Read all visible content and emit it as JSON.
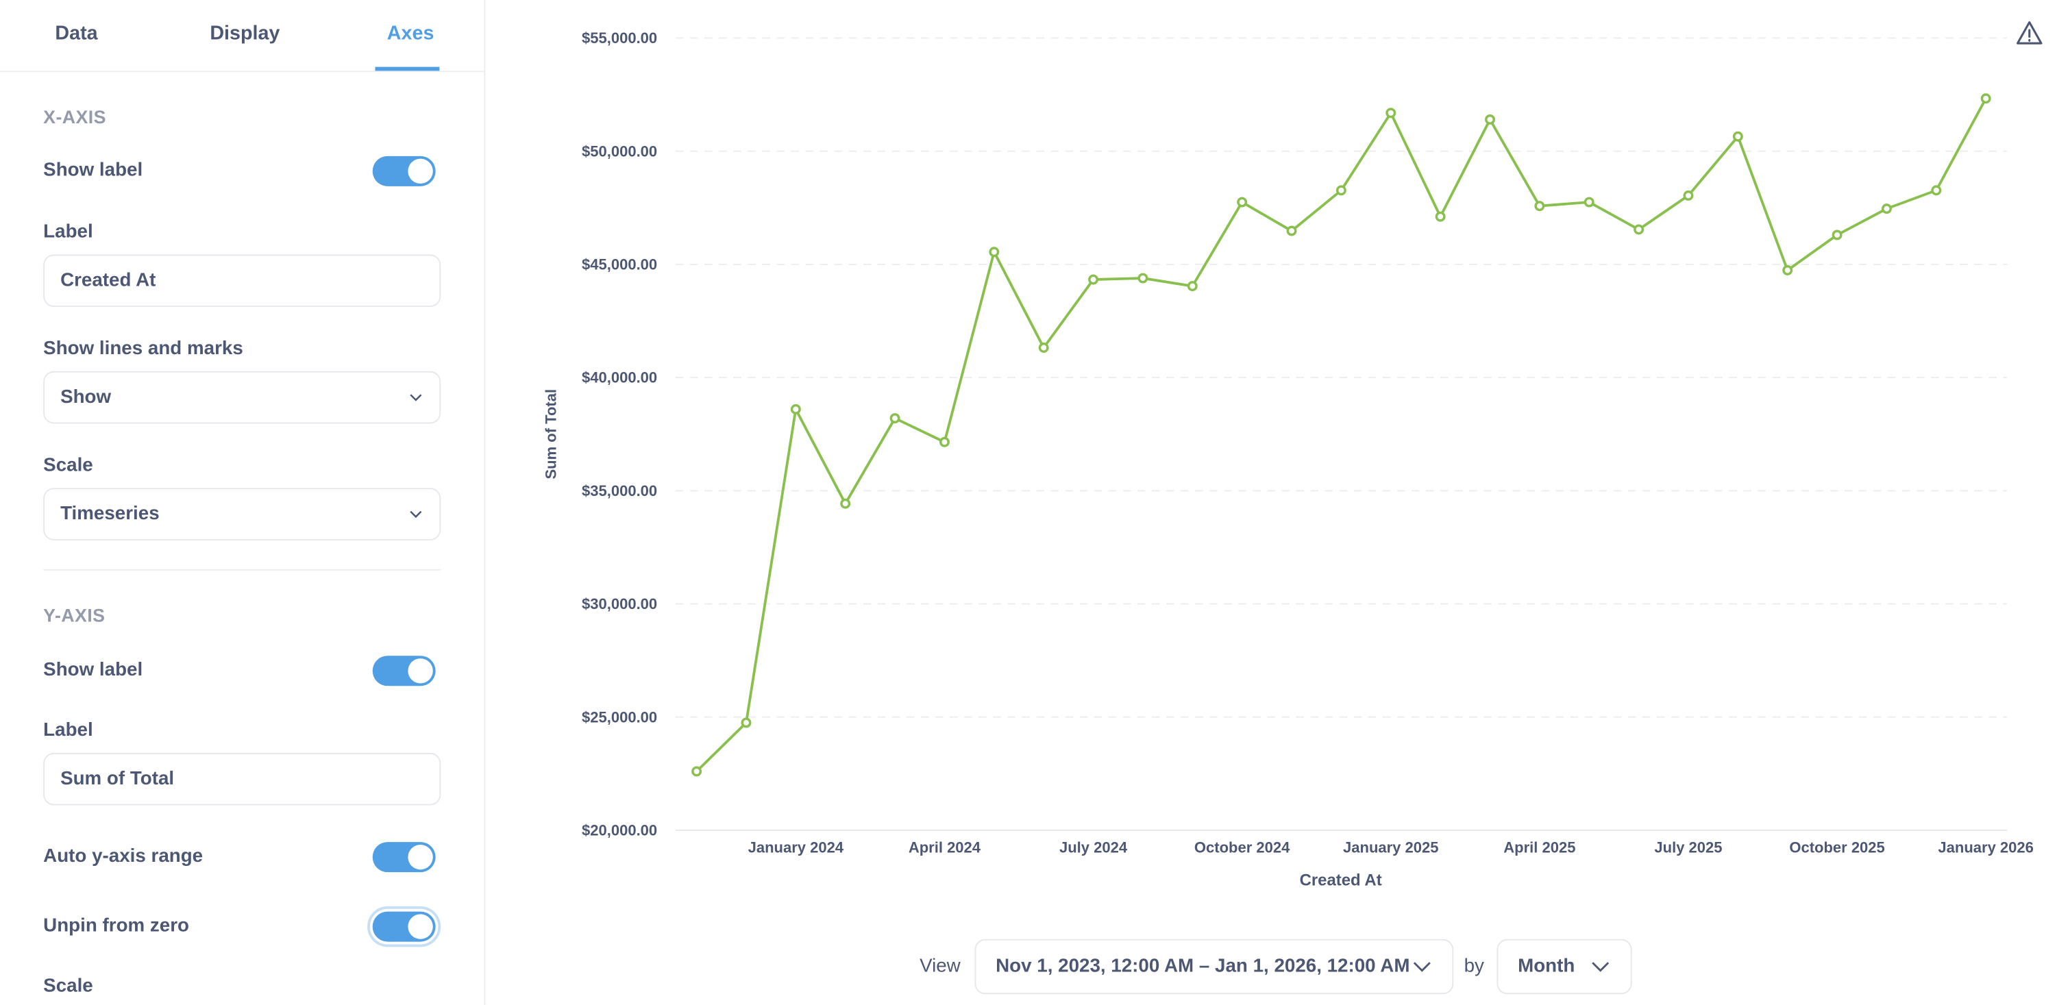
{
  "sidebar": {
    "tabs": [
      {
        "label": "Data"
      },
      {
        "label": "Display"
      },
      {
        "label": "Axes"
      }
    ],
    "active_tab": "Axes",
    "x_axis": {
      "heading": "X-AXIS",
      "show_label": "Show label",
      "show_label_on": true,
      "label_title": "Label",
      "label_value": "Created At",
      "lines_title": "Show lines and marks",
      "lines_value": "Show",
      "scale_title": "Scale",
      "scale_value": "Timeseries"
    },
    "y_axis": {
      "heading": "Y-AXIS",
      "show_label": "Show label",
      "show_label_on": true,
      "label_title": "Label",
      "label_value": "Sum of Total",
      "auto_range": "Auto y-axis range",
      "auto_range_on": true,
      "unpin": "Unpin from zero",
      "unpin_on": true,
      "scale_title": "Scale"
    }
  },
  "footer": {
    "view": "View",
    "range": "Nov 1, 2023, 12:00 AM – Jan 1, 2026, 12:00 AM",
    "by": "by",
    "unit": "Month"
  },
  "icons": {
    "warning": "warning-triangle-icon",
    "chevron": "chevron-down-icon"
  },
  "colors": {
    "accent": "#509ee3",
    "series": "#88bf4d"
  },
  "chart_data": {
    "type": "line",
    "xlabel": "Created At",
    "ylabel": "Sum of Total",
    "ylim": [
      20000,
      55000
    ],
    "yticks": [
      "$20,000.00",
      "$25,000.00",
      "$30,000.00",
      "$35,000.00",
      "$40,000.00",
      "$45,000.00",
      "$50,000.00",
      "$55,000.00"
    ],
    "xticks": [
      "January 2024",
      "April 2024",
      "July 2024",
      "October 2024",
      "January 2025",
      "April 2025",
      "July 2025",
      "October 2025",
      "January 2026"
    ],
    "grid": true,
    "x": [
      "2023-11",
      "2023-12",
      "2024-01",
      "2024-02",
      "2024-03",
      "2024-04",
      "2024-05",
      "2024-06",
      "2024-07",
      "2024-08",
      "2024-09",
      "2024-10",
      "2024-11",
      "2024-12",
      "2025-01",
      "2025-02",
      "2025-03",
      "2025-04",
      "2025-05",
      "2025-06",
      "2025-07",
      "2025-08",
      "2025-09",
      "2025-10",
      "2025-11",
      "2025-12",
      "2026-01"
    ],
    "values": [
      22600,
      24750,
      38600,
      34430,
      38200,
      37150,
      45550,
      41320,
      44330,
      44390,
      44040,
      47750,
      46480,
      48270,
      51690,
      47110,
      51400,
      47580,
      47750,
      46540,
      48040,
      50650,
      44740,
      46300,
      47460,
      48270,
      52330
    ]
  }
}
